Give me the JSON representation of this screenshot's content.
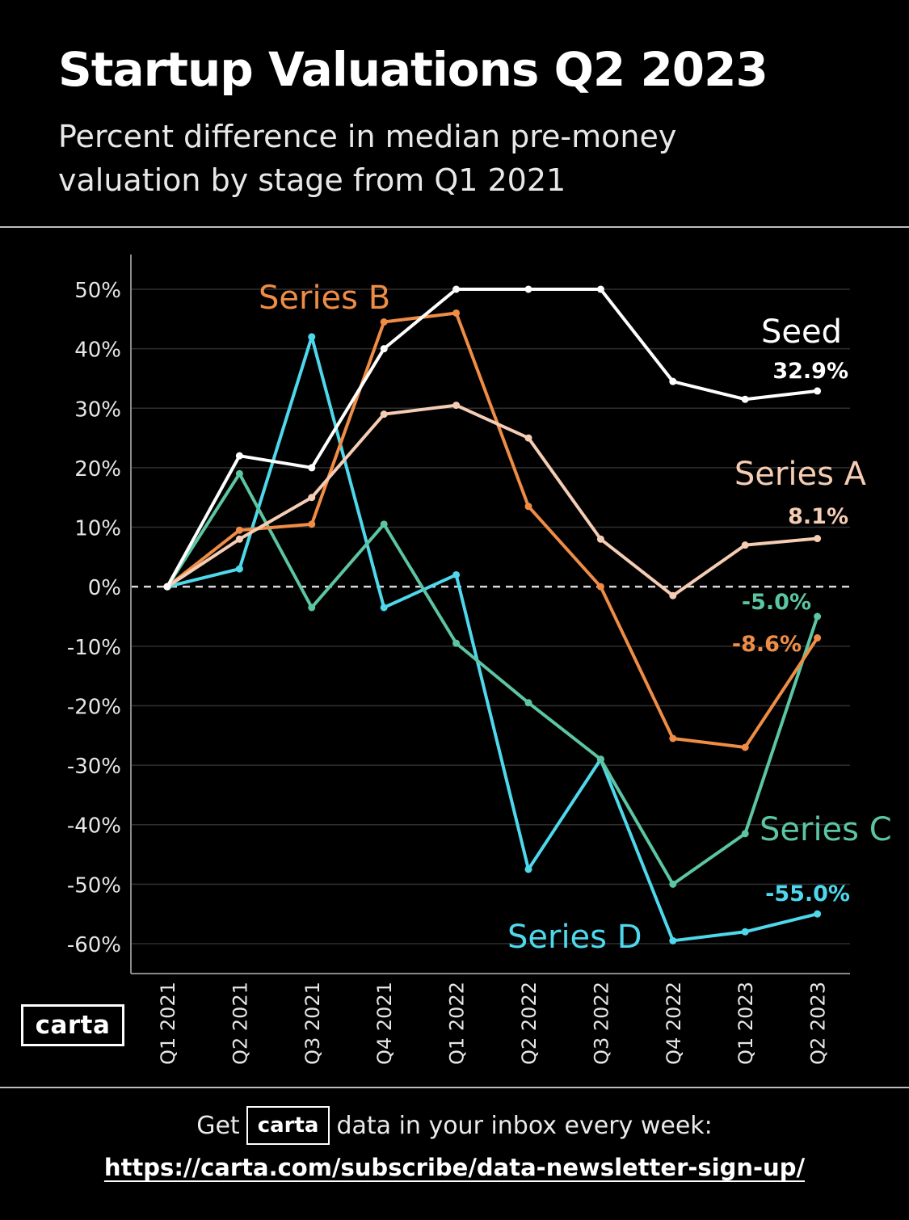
{
  "header": {
    "title": "Startup Valuations Q2 2023",
    "subtitle": "Percent difference in median pre-money valuation by stage from Q1 2021"
  },
  "branding": {
    "logo_text": "carta"
  },
  "footer": {
    "prefix": "Get",
    "logo_text": "carta",
    "suffix": "data in your inbox every week:",
    "url": "https://carta.com/subscribe/data-newsletter-sign-up/"
  },
  "chart_data": {
    "type": "line",
    "title": "Startup Valuations Q2 2023",
    "subtitle": "Percent difference in median pre-money valuation by stage from Q1 2021",
    "xlabel": "",
    "ylabel": "",
    "x": [
      "Q1 2021",
      "Q2 2021",
      "Q3 2021",
      "Q4 2021",
      "Q1 2022",
      "Q2 2022",
      "Q3 2022",
      "Q4 2022",
      "Q1 2023",
      "Q2 2023"
    ],
    "ylim": [
      -60,
      50
    ],
    "yticks": [
      50,
      40,
      30,
      20,
      10,
      0,
      -10,
      -20,
      -30,
      -40,
      -50,
      -60
    ],
    "ytick_labels": [
      "50%",
      "40%",
      "30%",
      "20%",
      "10%",
      "0%",
      "-10%",
      "-20%",
      "-30%",
      "-40%",
      "-50%",
      "-60%"
    ],
    "grid": true,
    "zero_line": "dashed",
    "series": [
      {
        "name": "Seed",
        "color": "#ffffff",
        "values": [
          0,
          22,
          20,
          40,
          50,
          50,
          50,
          34.5,
          31.5,
          32.9
        ],
        "end_label": "32.9%"
      },
      {
        "name": "Series A",
        "color": "#f5cdb4",
        "values": [
          0,
          8,
          15,
          29,
          30.5,
          25,
          8,
          -1.5,
          7,
          8.1
        ],
        "end_label": "8.1%"
      },
      {
        "name": "Series B",
        "color": "#ef8c45",
        "values": [
          0,
          9.5,
          10.5,
          44.5,
          46,
          13.5,
          0,
          -25.5,
          -27,
          -8.6
        ],
        "end_label": "-8.6%"
      },
      {
        "name": "Series C",
        "color": "#5cc5a3",
        "values": [
          0,
          19,
          -3.5,
          10.5,
          -9.5,
          -19.5,
          -29,
          -50,
          -41.5,
          -5.0
        ],
        "end_label": "-5.0%"
      },
      {
        "name": "Series D",
        "color": "#4fd8ec",
        "values": [
          0,
          3,
          42,
          -3.5,
          2,
          -47.5,
          -29,
          -59.5,
          -58,
          -55.0
        ],
        "end_label": "-55.0%"
      }
    ]
  }
}
